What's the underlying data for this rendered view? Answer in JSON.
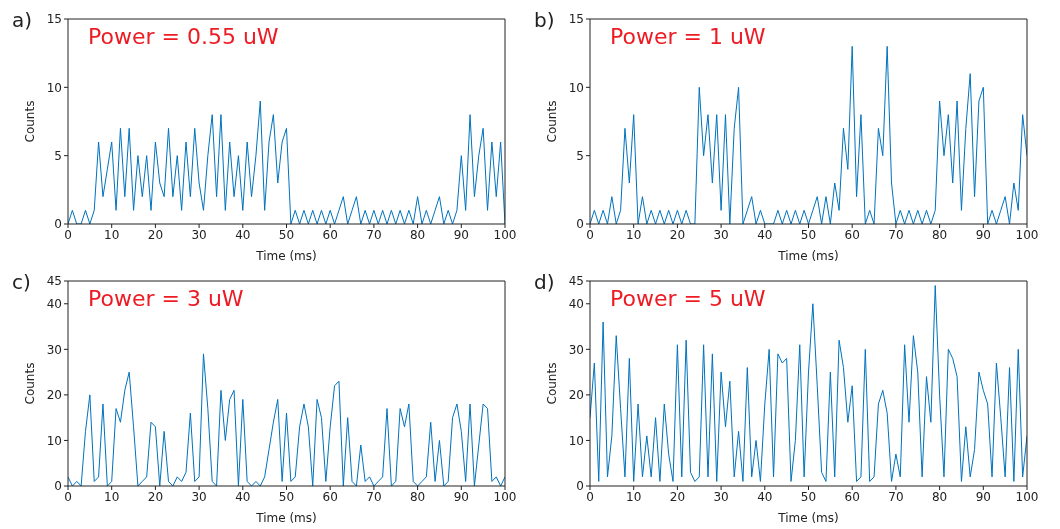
{
  "chart_data": [
    {
      "type": "line",
      "title": "a)",
      "xlabel": "Time (ms)",
      "ylabel": "Counts",
      "annotations": [
        "Power = 0.55 uW"
      ],
      "color": "#0072bd",
      "xlim": [
        0,
        100
      ],
      "xticks": [
        0,
        10,
        20,
        30,
        40,
        50,
        60,
        70,
        80,
        90,
        100
      ],
      "ylim": [
        0,
        15
      ],
      "yticks": [
        0,
        5,
        10,
        15
      ],
      "x": [
        0,
        1,
        2,
        3,
        4,
        5,
        6,
        7,
        8,
        9,
        10,
        11,
        12,
        13,
        14,
        15,
        16,
        17,
        18,
        19,
        20,
        21,
        22,
        23,
        24,
        25,
        26,
        27,
        28,
        29,
        30,
        31,
        32,
        33,
        34,
        35,
        36,
        37,
        38,
        39,
        40,
        41,
        42,
        43,
        44,
        45,
        46,
        47,
        48,
        49,
        50,
        51,
        52,
        53,
        54,
        55,
        56,
        57,
        58,
        59,
        60,
        61,
        62,
        63,
        64,
        65,
        66,
        67,
        68,
        69,
        70,
        71,
        72,
        73,
        74,
        75,
        76,
        77,
        78,
        79,
        80,
        81,
        82,
        83,
        84,
        85,
        86,
        87,
        88,
        89,
        90,
        91,
        92,
        93,
        94,
        95,
        96,
        97,
        98,
        99,
        100
      ],
      "values": [
        0,
        1,
        0,
        0,
        1,
        0,
        1,
        6,
        2,
        4,
        6,
        1,
        7,
        2,
        7,
        1,
        5,
        2,
        5,
        1,
        6,
        3,
        2,
        7,
        2,
        5,
        1,
        6,
        2,
        7,
        3,
        1,
        5,
        8,
        2,
        8,
        1,
        6,
        2,
        5,
        1,
        6,
        2,
        5,
        9,
        1,
        6,
        8,
        3,
        6,
        7,
        0,
        1,
        0,
        1,
        0,
        1,
        0,
        1,
        0,
        1,
        0,
        1,
        2,
        0,
        1,
        2,
        0,
        1,
        0,
        1,
        0,
        1,
        0,
        1,
        0,
        1,
        0,
        1,
        0,
        2,
        0,
        1,
        0,
        1,
        2,
        0,
        1,
        0,
        1,
        5,
        1,
        8,
        2,
        5,
        7,
        1,
        6,
        2,
        6,
        0
      ]
    },
    {
      "type": "line",
      "title": "b)",
      "xlabel": "Time (ms)",
      "ylabel": "Counts",
      "annotations": [
        "Power = 1 uW"
      ],
      "color": "#0072bd",
      "xlim": [
        0,
        100
      ],
      "xticks": [
        0,
        10,
        20,
        30,
        40,
        50,
        60,
        70,
        80,
        90,
        100
      ],
      "ylim": [
        0,
        15
      ],
      "yticks": [
        0,
        5,
        10,
        15
      ],
      "x": [
        0,
        1,
        2,
        3,
        4,
        5,
        6,
        7,
        8,
        9,
        10,
        11,
        12,
        13,
        14,
        15,
        16,
        17,
        18,
        19,
        20,
        21,
        22,
        23,
        24,
        25,
        26,
        27,
        28,
        29,
        30,
        31,
        32,
        33,
        34,
        35,
        36,
        37,
        38,
        39,
        40,
        41,
        42,
        43,
        44,
        45,
        46,
        47,
        48,
        49,
        50,
        51,
        52,
        53,
        54,
        55,
        56,
        57,
        58,
        59,
        60,
        61,
        62,
        63,
        64,
        65,
        66,
        67,
        68,
        69,
        70,
        71,
        72,
        73,
        74,
        75,
        76,
        77,
        78,
        79,
        80,
        81,
        82,
        83,
        84,
        85,
        86,
        87,
        88,
        89,
        90,
        91,
        92,
        93,
        94,
        95,
        96,
        97,
        98,
        99,
        100
      ],
      "values": [
        0,
        1,
        0,
        1,
        0,
        2,
        0,
        1,
        7,
        3,
        8,
        0,
        2,
        0,
        1,
        0,
        1,
        0,
        1,
        0,
        1,
        0,
        1,
        0,
        0,
        10,
        5,
        8,
        3,
        8,
        1,
        8,
        0,
        7,
        10,
        0,
        1,
        2,
        0,
        1,
        0,
        0,
        0,
        1,
        0,
        1,
        0,
        1,
        0,
        1,
        0,
        1,
        2,
        0,
        2,
        0,
        3,
        1,
        7,
        4,
        13,
        2,
        8,
        0,
        1,
        0,
        7,
        5,
        13,
        3,
        0,
        1,
        0,
        1,
        0,
        1,
        0,
        1,
        0,
        1,
        9,
        5,
        8,
        3,
        9,
        1,
        7,
        11,
        2,
        9,
        10,
        0,
        1,
        0,
        1,
        2,
        0,
        3,
        1,
        8,
        5
      ]
    },
    {
      "type": "line",
      "title": "c)",
      "xlabel": "Time (ms)",
      "ylabel": "Counts",
      "annotations": [
        "Power = 3 uW"
      ],
      "color": "#0072bd",
      "xlim": [
        0,
        100
      ],
      "xticks": [
        0,
        10,
        20,
        30,
        40,
        50,
        60,
        70,
        80,
        90,
        100
      ],
      "ylim": [
        0,
        45
      ],
      "yticks": [
        0,
        10,
        20,
        30,
        40,
        45
      ],
      "x": [
        0,
        1,
        2,
        3,
        4,
        5,
        6,
        7,
        8,
        9,
        10,
        11,
        12,
        13,
        14,
        15,
        16,
        17,
        18,
        19,
        20,
        21,
        22,
        23,
        24,
        25,
        26,
        27,
        28,
        29,
        30,
        31,
        32,
        33,
        34,
        35,
        36,
        37,
        38,
        39,
        40,
        41,
        42,
        43,
        44,
        45,
        46,
        47,
        48,
        49,
        50,
        51,
        52,
        53,
        54,
        55,
        56,
        57,
        58,
        59,
        60,
        61,
        62,
        63,
        64,
        65,
        66,
        67,
        68,
        69,
        70,
        71,
        72,
        73,
        74,
        75,
        76,
        77,
        78,
        79,
        80,
        81,
        82,
        83,
        84,
        85,
        86,
        87,
        88,
        89,
        90,
        91,
        92,
        93,
        94,
        95,
        96,
        97,
        98,
        99,
        100
      ],
      "values": [
        2,
        0,
        1,
        0,
        12,
        20,
        1,
        2,
        18,
        0,
        1,
        17,
        14,
        21,
        25,
        13,
        0,
        1,
        2,
        14,
        13,
        0,
        12,
        1,
        0,
        2,
        1,
        3,
        16,
        1,
        2,
        29,
        17,
        1,
        0,
        21,
        10,
        19,
        21,
        0,
        19,
        1,
        0,
        1,
        0,
        2,
        8,
        14,
        19,
        1,
        16,
        1,
        2,
        13,
        18,
        13,
        0,
        19,
        15,
        1,
        13,
        22,
        23,
        0,
        15,
        1,
        0,
        9,
        1,
        2,
        0,
        1,
        2,
        17,
        0,
        1,
        17,
        13,
        18,
        1,
        0,
        1,
        2,
        14,
        1,
        10,
        0,
        1,
        15,
        18,
        12,
        1,
        18,
        0,
        9,
        18,
        17,
        1,
        2,
        0,
        2
      ]
    },
    {
      "type": "line",
      "title": "d)",
      "xlabel": "Time (ms)",
      "ylabel": "Counts",
      "annotations": [
        "Power = 5 uW"
      ],
      "color": "#0072bd",
      "xlim": [
        0,
        100
      ],
      "xticks": [
        0,
        10,
        20,
        30,
        40,
        50,
        60,
        70,
        80,
        90,
        100
      ],
      "ylim": [
        0,
        45
      ],
      "yticks": [
        0,
        10,
        20,
        30,
        40,
        45
      ],
      "x": [
        0,
        1,
        2,
        3,
        4,
        5,
        6,
        7,
        8,
        9,
        10,
        11,
        12,
        13,
        14,
        15,
        16,
        17,
        18,
        19,
        20,
        21,
        22,
        23,
        24,
        25,
        26,
        27,
        28,
        29,
        30,
        31,
        32,
        33,
        34,
        35,
        36,
        37,
        38,
        39,
        40,
        41,
        42,
        43,
        44,
        45,
        46,
        47,
        48,
        49,
        50,
        51,
        52,
        53,
        54,
        55,
        56,
        57,
        58,
        59,
        60,
        61,
        62,
        63,
        64,
        65,
        66,
        67,
        68,
        69,
        70,
        71,
        72,
        73,
        74,
        75,
        76,
        77,
        78,
        79,
        80,
        81,
        82,
        83,
        84,
        85,
        86,
        87,
        88,
        89,
        90,
        91,
        92,
        93,
        94,
        95,
        96,
        97,
        98,
        99,
        100
      ],
      "values": [
        15,
        27,
        1,
        36,
        2,
        11,
        33,
        17,
        2,
        28,
        1,
        18,
        2,
        11,
        2,
        15,
        1,
        18,
        7,
        1,
        31,
        2,
        32,
        3,
        1,
        2,
        31,
        2,
        29,
        1,
        25,
        13,
        23,
        2,
        12,
        1,
        26,
        2,
        10,
        1,
        18,
        30,
        2,
        29,
        27,
        28,
        1,
        10,
        31,
        2,
        25,
        40,
        22,
        3,
        1,
        25,
        2,
        32,
        26,
        14,
        22,
        1,
        2,
        30,
        1,
        2,
        18,
        21,
        16,
        1,
        7,
        2,
        31,
        14,
        33,
        25,
        2,
        24,
        14,
        44,
        20,
        2,
        30,
        28,
        24,
        1,
        13,
        2,
        8,
        25,
        21,
        18,
        2,
        27,
        15,
        2,
        26,
        1,
        30,
        2,
        11
      ]
    }
  ]
}
